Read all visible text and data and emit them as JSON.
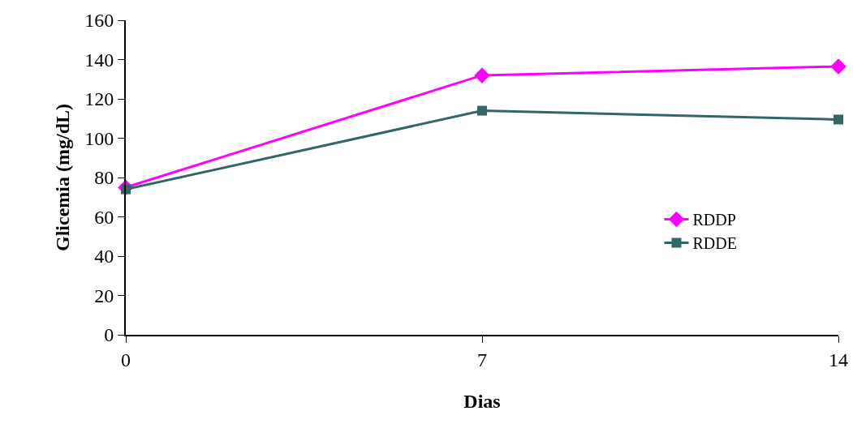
{
  "chart_data": {
    "type": "line",
    "xlabel": "Dias",
    "ylabel": "Glicemia (mg/dL)",
    "x": [
      0,
      7,
      14
    ],
    "xlim": [
      0,
      14
    ],
    "xticks": [
      0,
      7,
      14
    ],
    "ylim": [
      0,
      160
    ],
    "yticks": [
      0,
      20,
      40,
      60,
      80,
      100,
      120,
      140,
      160
    ],
    "grid": false,
    "legend": "right",
    "line_style": "solid",
    "series": [
      {
        "name": "RDDP",
        "color": "#ff00ff",
        "marker": "diamond",
        "values": [
          75,
          132,
          136.5
        ]
      },
      {
        "name": "RDDE",
        "color": "#336666",
        "marker": "square",
        "values": [
          74,
          114,
          109.5
        ]
      }
    ]
  }
}
